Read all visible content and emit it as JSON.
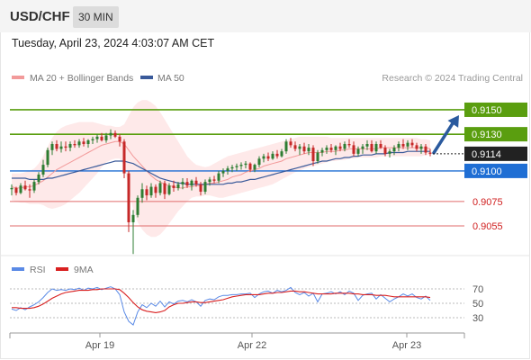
{
  "header": {
    "symbol": "USD/CHF",
    "interval": "30 MIN"
  },
  "datetime": "Tuesday, April 23, 2024 4:03:07 AM CET",
  "legend": {
    "ma20": "MA 20 + Bollinger Bands",
    "ma50": "MA 50",
    "rsi": "RSI",
    "ma9": "9MA",
    "credit": "Research © 2024 Trading Central"
  },
  "colors": {
    "candle_up": "#2e7d32",
    "candle_down": "#c62828",
    "bollinger_fill": "#fde2e2",
    "ma20": "#f29a9a",
    "ma50": "#3a5a9a",
    "resistance": "#5a9e0f",
    "support_blue": "#1f6ed4",
    "support_red": "#e06b6b",
    "current": "#222222",
    "arrow": "#2a5a9e",
    "rsi": "#5a8ae6",
    "rsi_ma": "#d92020"
  },
  "chart_data": {
    "type": "candlestick",
    "symbol": "USD/CHF",
    "timeframe": "30 MIN",
    "x_ticks": [
      "Apr 19",
      "Apr 22",
      "Apr 23"
    ],
    "ylim": [
      9030,
      9175
    ],
    "price_unit": "1e-4",
    "current_price": "0.9114",
    "levels": [
      {
        "label": "0.9150",
        "value": 0.915,
        "kind": "resistance"
      },
      {
        "label": "0.9130",
        "value": 0.913,
        "kind": "resistance"
      },
      {
        "label": "0.9100",
        "value": 0.91,
        "kind": "support"
      },
      {
        "label": "0.9075",
        "value": 0.9075,
        "kind": "support_minor"
      },
      {
        "label": "0.9055",
        "value": 0.9055,
        "kind": "support_minor"
      }
    ],
    "forecast": {
      "from": 0.9114,
      "to": 0.915
    },
    "rsi": {
      "ticks": [
        "70",
        "50",
        "30"
      ],
      "range": [
        0,
        100
      ]
    },
    "candles": [
      [
        9085,
        9089,
        9080,
        9086
      ],
      [
        9086,
        9087,
        9080,
        9082
      ],
      [
        9082,
        9090,
        9081,
        9088
      ],
      [
        9088,
        9092,
        9084,
        9085
      ],
      [
        9085,
        9089,
        9078,
        9084
      ],
      [
        9084,
        9093,
        9082,
        9091
      ],
      [
        9091,
        9099,
        9089,
        9097
      ],
      [
        9097,
        9109,
        9095,
        9105
      ],
      [
        9105,
        9119,
        9103,
        9117
      ],
      [
        9117,
        9124,
        9113,
        9122
      ],
      [
        9122,
        9125,
        9116,
        9118
      ],
      [
        9118,
        9124,
        9115,
        9120
      ],
      [
        9120,
        9124,
        9116,
        9119
      ],
      [
        9119,
        9124,
        9116,
        9122
      ],
      [
        9122,
        9125,
        9119,
        9121
      ],
      [
        9121,
        9126,
        9119,
        9124
      ],
      [
        9124,
        9127,
        9120,
        9122
      ],
      [
        9122,
        9126,
        9119,
        9125
      ],
      [
        9125,
        9128,
        9122,
        9126
      ],
      [
        9126,
        9130,
        9123,
        9128
      ],
      [
        9128,
        9131,
        9124,
        9125
      ],
      [
        9125,
        9131,
        9123,
        9129
      ],
      [
        9129,
        9134,
        9126,
        9131
      ],
      [
        9131,
        9133,
        9127,
        9128
      ],
      [
        9128,
        9130,
        9120,
        9124
      ],
      [
        9124,
        9126,
        9094,
        9098
      ],
      [
        9098,
        9100,
        9050,
        9058
      ],
      [
        9058,
        9068,
        9032,
        9064
      ],
      [
        9064,
        9080,
        9062,
        9078
      ],
      [
        9078,
        9090,
        9074,
        9085
      ],
      [
        9085,
        9088,
        9076,
        9080
      ],
      [
        9080,
        9090,
        9078,
        9087
      ],
      [
        9087,
        9089,
        9078,
        9082
      ],
      [
        9082,
        9092,
        9080,
        9090
      ],
      [
        9090,
        9092,
        9077,
        9081
      ],
      [
        9081,
        9090,
        9080,
        9088
      ],
      [
        9088,
        9092,
        9083,
        9086
      ],
      [
        9086,
        9091,
        9084,
        9089
      ],
      [
        9089,
        9094,
        9085,
        9091
      ],
      [
        9091,
        9094,
        9086,
        9088
      ],
      [
        9088,
        9093,
        9084,
        9092
      ],
      [
        9092,
        9095,
        9087,
        9089
      ],
      [
        9089,
        9091,
        9080,
        9083
      ],
      [
        9083,
        9093,
        9081,
        9091
      ],
      [
        9091,
        9095,
        9088,
        9093
      ],
      [
        9093,
        9096,
        9090,
        9092
      ],
      [
        9092,
        9100,
        9090,
        9098
      ],
      [
        9098,
        9102,
        9095,
        9100
      ],
      [
        9100,
        9104,
        9097,
        9102
      ],
      [
        9102,
        9105,
        9099,
        9103
      ],
      [
        9103,
        9106,
        9100,
        9104
      ],
      [
        9104,
        9107,
        9101,
        9105
      ],
      [
        9105,
        9108,
        9102,
        9106
      ],
      [
        9106,
        9107,
        9099,
        9101
      ],
      [
        9101,
        9106,
        9099,
        9105
      ],
      [
        9105,
        9112,
        9103,
        9110
      ],
      [
        9110,
        9114,
        9107,
        9112
      ],
      [
        9112,
        9115,
        9108,
        9110
      ],
      [
        9110,
        9116,
        9109,
        9114
      ],
      [
        9114,
        9117,
        9110,
        9112
      ],
      [
        9112,
        9118,
        9111,
        9116
      ],
      [
        9116,
        9126,
        9114,
        9124
      ],
      [
        9124,
        9127,
        9119,
        9121
      ],
      [
        9121,
        9124,
        9116,
        9118
      ],
      [
        9118,
        9122,
        9113,
        9120
      ],
      [
        9120,
        9123,
        9114,
        9116
      ],
      [
        9116,
        9122,
        9113,
        9119
      ],
      [
        9119,
        9121,
        9104,
        9108
      ],
      [
        9108,
        9117,
        9106,
        9115
      ],
      [
        9115,
        9119,
        9112,
        9117
      ],
      [
        9117,
        9121,
        9114,
        9119
      ],
      [
        9119,
        9122,
        9115,
        9117
      ],
      [
        9117,
        9121,
        9113,
        9120
      ],
      [
        9120,
        9123,
        9116,
        9118
      ],
      [
        9118,
        9124,
        9116,
        9122
      ],
      [
        9122,
        9126,
        9119,
        9121
      ],
      [
        9121,
        9124,
        9112,
        9114
      ],
      [
        9114,
        9120,
        9112,
        9118
      ],
      [
        9118,
        9122,
        9114,
        9120
      ],
      [
        9120,
        9125,
        9117,
        9122
      ],
      [
        9122,
        9125,
        9115,
        9116
      ],
      [
        9116,
        9124,
        9114,
        9122
      ],
      [
        9122,
        9125,
        9118,
        9119
      ],
      [
        9119,
        9121,
        9112,
        9114
      ],
      [
        9114,
        9118,
        9111,
        9116
      ],
      [
        9116,
        9121,
        9113,
        9119
      ],
      [
        9119,
        9124,
        9116,
        9122
      ],
      [
        9122,
        9126,
        9118,
        9120
      ],
      [
        9120,
        9125,
        9117,
        9123
      ],
      [
        9123,
        9126,
        9119,
        9121
      ],
      [
        9121,
        9123,
        9116,
        9118
      ],
      [
        9118,
        9122,
        9114,
        9120
      ],
      [
        9120,
        9122,
        9113,
        9115
      ],
      [
        9115,
        9118,
        9112,
        9114
      ]
    ],
    "ma20": [
      9087,
      9086,
      9086,
      9087,
      9087,
      9088,
      9090,
      9092,
      9095,
      9098,
      9101,
      9103,
      9105,
      9107,
      9109,
      9111,
      9113,
      9115,
      9117,
      9119,
      9121,
      9122,
      9123,
      9124,
      9124,
      9122,
      9117,
      9112,
      9108,
      9104,
      9100,
      9096,
      9093,
      9091,
      9089,
      9088,
      9087,
      9086,
      9086,
      9087,
      9087,
      9088,
      9088,
      9089,
      9090,
      9090,
      9091,
      9092,
      9093,
      9095,
      9096,
      9097,
      9099,
      9100,
      9101,
      9102,
      9104,
      9105,
      9106,
      9107,
      9108,
      9110,
      9111,
      9112,
      9113,
      9114,
      9115,
      9115,
      9115,
      9115,
      9116,
      9116,
      9116,
      9117,
      9117,
      9118,
      9118,
      9118,
      9118,
      9118,
      9118,
      9118,
      9119,
      9119,
      9119,
      9119,
      9119,
      9119,
      9119,
      9119,
      9119,
      9119,
      9119,
      9118
    ],
    "ma50": [
      9094,
      9094,
      9094,
      9094,
      9093,
      9093,
      9093,
      9093,
      9094,
      9094,
      9095,
      9096,
      9097,
      9098,
      9099,
      9100,
      9101,
      9102,
      9103,
      9104,
      9105,
      9106,
      9107,
      9108,
      9108,
      9108,
      9107,
      9106,
      9104,
      9102,
      9100,
      9098,
      9096,
      9094,
      9093,
      9092,
      9091,
      9090,
      9090,
      9089,
      9089,
      9089,
      9089,
      9089,
      9089,
      9089,
      9089,
      9089,
      9090,
      9090,
      9091,
      9091,
      9092,
      9093,
      9093,
      9094,
      9095,
      9096,
      9097,
      9098,
      9099,
      9100,
      9101,
      9102,
      9103,
      9104,
      9105,
      9106,
      9107,
      9108,
      9108,
      9109,
      9110,
      9110,
      9111,
      9111,
      9112,
      9112,
      9113,
      9113,
      9113,
      9114,
      9114,
      9114,
      9115,
      9115,
      9115,
      9115,
      9116,
      9116,
      9116,
      9116,
      9116,
      9116
    ],
    "bb_upper": [
      9098,
      9098,
      9098,
      9099,
      9100,
      9102,
      9106,
      9112,
      9120,
      9127,
      9132,
      9135,
      9137,
      9138,
      9139,
      9140,
      9140,
      9140,
      9140,
      9139,
      9138,
      9137,
      9137,
      9136,
      9136,
      9138,
      9145,
      9152,
      9156,
      9158,
      9158,
      9156,
      9153,
      9148,
      9142,
      9136,
      9130,
      9124,
      9118,
      9112,
      9108,
      9105,
      9104,
      9103,
      9104,
      9106,
      9108,
      9110,
      9112,
      9113,
      9114,
      9115,
      9116,
      9117,
      9118,
      9119,
      9120,
      9121,
      9122,
      9123,
      9124,
      9125,
      9126,
      9127,
      9128,
      9128,
      9128,
      9128,
      9128,
      9128,
      9128,
      9127,
      9127,
      9127,
      9127,
      9127,
      9127,
      9127,
      9127,
      9127,
      9127,
      9127,
      9127,
      9127,
      9127,
      9127,
      9127,
      9127,
      9127,
      9127,
      9127,
      9126,
      9126,
      9125
    ],
    "bb_lower": [
      9076,
      9075,
      9074,
      9074,
      9073,
      9073,
      9073,
      9072,
      9070,
      9069,
      9070,
      9071,
      9073,
      9076,
      9079,
      9082,
      9086,
      9090,
      9094,
      9098,
      9103,
      9107,
      9109,
      9110,
      9110,
      9104,
      9086,
      9068,
      9058,
      9052,
      9048,
      9046,
      9046,
      9048,
      9052,
      9057,
      9062,
      9067,
      9071,
      9075,
      9078,
      9079,
      9079,
      9080,
      9080,
      9079,
      9078,
      9078,
      9079,
      9080,
      9081,
      9082,
      9083,
      9084,
      9085,
      9086,
      9087,
      9088,
      9089,
      9091,
      9093,
      9095,
      9097,
      9099,
      9100,
      9102,
      9103,
      9104,
      9105,
      9106,
      9107,
      9108,
      9108,
      9109,
      9109,
      9110,
      9110,
      9111,
      9111,
      9111,
      9111,
      9111,
      9112,
      9112,
      9112,
      9112,
      9112,
      9112,
      9112,
      9112,
      9112,
      9112,
      9113,
      9113
    ],
    "rsi_values": [
      42,
      40,
      44,
      41,
      45,
      48,
      52,
      58,
      65,
      70,
      68,
      69,
      68,
      70,
      69,
      71,
      68,
      71,
      70,
      72,
      69,
      71,
      73,
      70,
      62,
      38,
      25,
      20,
      38,
      48,
      44,
      50,
      46,
      53,
      45,
      52,
      49,
      53,
      54,
      52,
      55,
      52,
      46,
      54,
      56,
      55,
      59,
      61,
      61,
      62,
      62,
      63,
      63,
      64,
      58,
      63,
      66,
      67,
      64,
      68,
      66,
      68,
      72,
      65,
      62,
      65,
      60,
      64,
      52,
      63,
      64,
      66,
      63,
      66,
      62,
      67,
      64,
      54,
      61,
      63,
      64,
      56,
      62,
      57,
      52,
      56,
      59,
      63,
      60,
      63,
      58,
      56,
      60,
      54
    ],
    "rsi_ma": [
      44,
      44,
      43,
      43,
      43,
      44,
      46,
      49,
      53,
      57,
      60,
      63,
      65,
      66,
      67,
      68,
      68,
      68,
      69,
      69,
      70,
      70,
      70,
      70,
      69,
      64,
      58,
      51,
      45,
      41,
      39,
      38,
      37,
      38,
      40,
      45,
      48,
      50,
      50,
      51,
      52,
      52,
      51,
      51,
      52,
      53,
      54,
      55,
      57,
      59,
      60,
      61,
      62,
      62,
      62,
      62,
      63,
      64,
      64,
      65,
      65,
      66,
      67,
      67,
      66,
      66,
      65,
      64,
      63,
      63,
      63,
      63,
      64,
      64,
      64,
      64,
      63,
      63,
      62,
      62,
      62,
      61,
      61,
      61,
      60,
      59,
      59,
      59,
      59,
      59,
      59,
      59,
      59,
      58
    ]
  }
}
